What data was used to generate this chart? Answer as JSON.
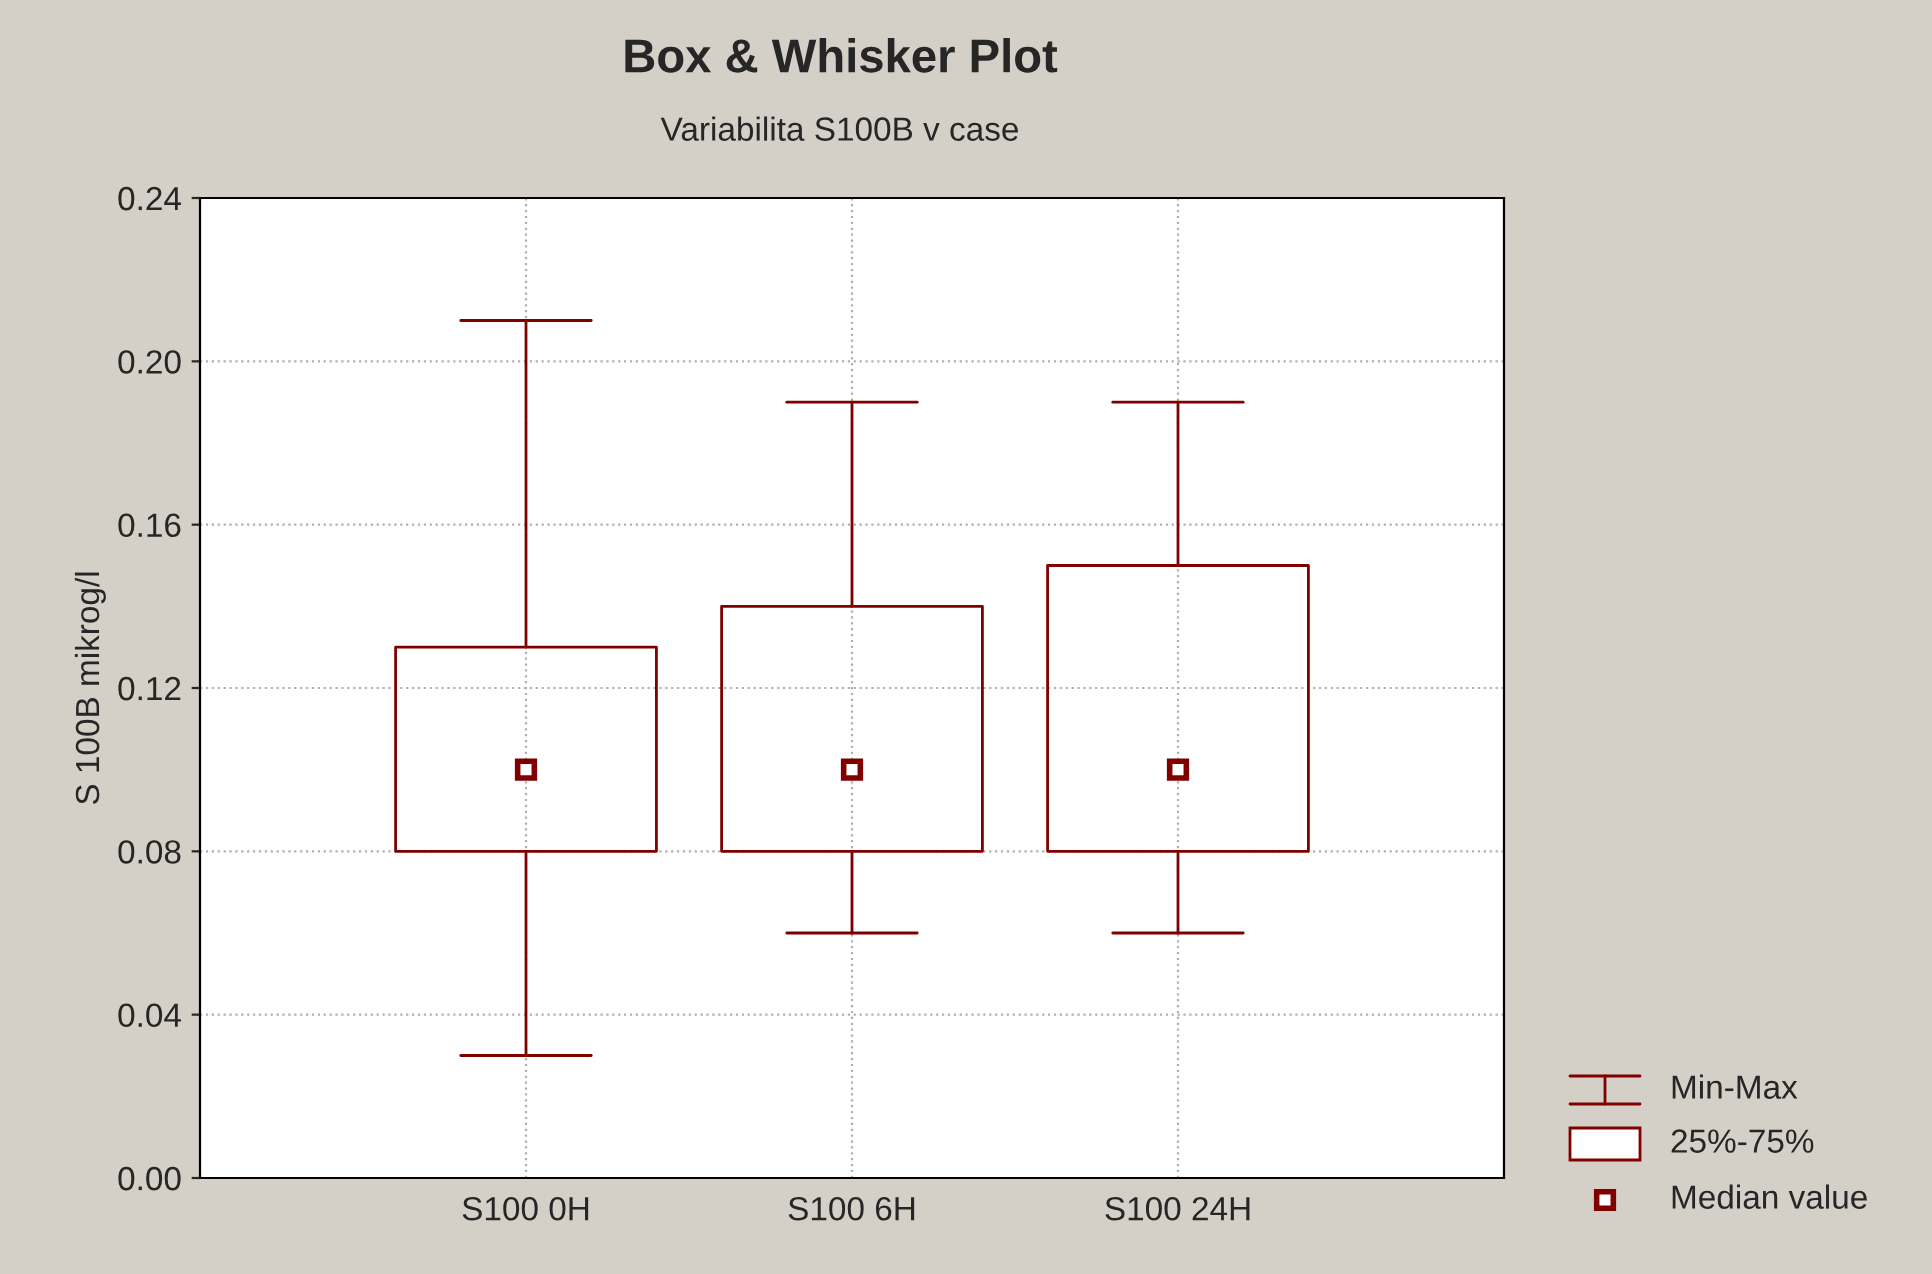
{
  "chart_data": {
    "type": "box",
    "title": "Box & Whisker Plot",
    "subtitle": "Variabilita S100B v case",
    "ylabel": "S 100B mikrog/l",
    "categories": [
      "S100 0H",
      "S100 6H",
      "S100 24H"
    ],
    "series": [
      {
        "color": "#800000",
        "boxes": [
          {
            "low": 0.03,
            "q1": 0.08,
            "median": 0.1,
            "q3": 0.13,
            "high": 0.21
          },
          {
            "low": 0.06,
            "q1": 0.08,
            "median": 0.1,
            "q3": 0.14,
            "high": 0.19
          },
          {
            "low": 0.06,
            "q1": 0.08,
            "median": 0.1,
            "q3": 0.15,
            "high": 0.19
          }
        ]
      }
    ],
    "ylim": [
      0,
      0.24
    ],
    "yticks": [
      {
        "value": 0,
        "label": "0.00"
      },
      {
        "value": 0.04,
        "label": "0.04"
      },
      {
        "value": 0.08,
        "label": "0.08"
      },
      {
        "value": 0.12,
        "label": "0.12"
      },
      {
        "value": 0.16,
        "label": "0.16"
      },
      {
        "value": 0.2,
        "label": "0.20"
      },
      {
        "value": 0.24,
        "label": "0.24"
      }
    ],
    "grid": true,
    "marker": "square",
    "annotations": [
      "Min-Max",
      "25%-75%",
      "Median value"
    ]
  }
}
